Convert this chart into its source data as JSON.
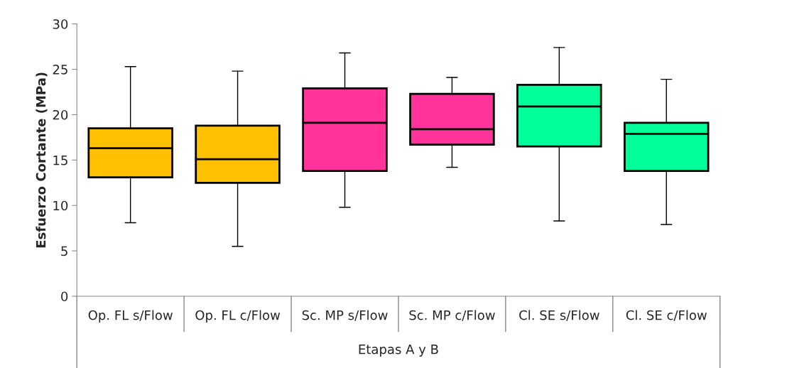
{
  "chart_data": {
    "type": "box",
    "xlabel": "Etapas A y B",
    "ylabel": "Esfuerzo Cortante (MPa)",
    "categories": [
      "Op. FL s/Flow",
      "Op. FL c/Flow",
      "Sc. MP s/Flow",
      "Sc. MP c/Flow",
      "Cl. SE s/Flow",
      "Cl. SE c/Flow"
    ],
    "colors": [
      "#ffc000",
      "#ffc000",
      "#ff3399",
      "#ff3399",
      "#00ff99",
      "#00ff99"
    ],
    "boxes": [
      {
        "low": 8.1,
        "q1": 13.1,
        "median": 16.3,
        "q3": 18.5,
        "high": 25.3
      },
      {
        "low": 5.5,
        "q1": 12.5,
        "median": 15.1,
        "q3": 18.8,
        "high": 24.8
      },
      {
        "low": 9.8,
        "q1": 13.8,
        "median": 19.1,
        "q3": 22.9,
        "high": 26.8
      },
      {
        "low": 14.2,
        "q1": 16.7,
        "median": 18.4,
        "q3": 22.3,
        "high": 24.1
      },
      {
        "low": 8.3,
        "q1": 16.5,
        "median": 20.9,
        "q3": 23.3,
        "high": 27.4
      },
      {
        "low": 7.9,
        "q1": 13.8,
        "median": 17.9,
        "q3": 19.1,
        "high": 23.9
      }
    ],
    "ylim": [
      0,
      30
    ],
    "yticks": [
      0,
      5,
      10,
      15,
      20,
      25,
      30
    ],
    "grid": false,
    "legend": false
  }
}
